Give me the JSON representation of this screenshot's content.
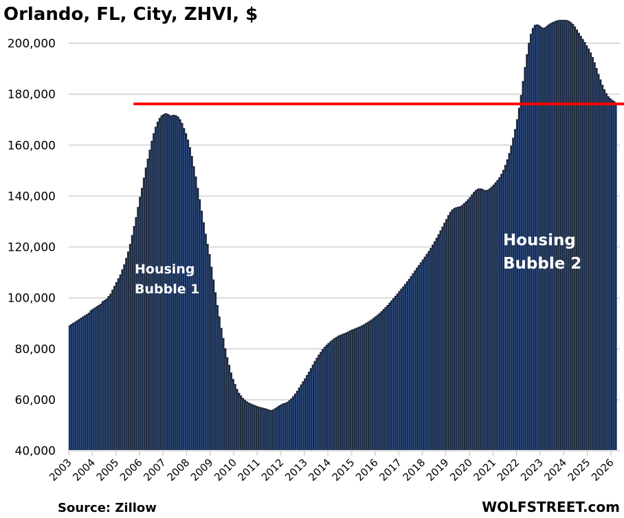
{
  "chart_data": {
    "type": "bar",
    "title": "Orlando, FL, City, ZHVI, $",
    "xlabel": "",
    "ylabel": "",
    "ylim": [
      40000,
      210000
    ],
    "y_ticks": [
      40000,
      60000,
      80000,
      100000,
      120000,
      140000,
      160000,
      180000,
      200000
    ],
    "y_tick_labels": [
      "40,000",
      "60,000",
      "80,000",
      "100,000",
      "120,000",
      "140,000",
      "160,000",
      "180,000",
      "200,000"
    ],
    "x_tick_labels": [
      "2003",
      "2004",
      "2005",
      "2006",
      "2007",
      "2008",
      "2009",
      "2010",
      "2011",
      "2012",
      "2013",
      "2014",
      "2015",
      "2016",
      "2017",
      "2018",
      "2019",
      "2020",
      "2021",
      "2022",
      "2023",
      "2024",
      "2025",
      "2026"
    ],
    "grid": "horizontal",
    "frequency": "monthly",
    "start": "2003-01",
    "bar_color": "#1f2a3c",
    "bar_edge_color": "#3b6bbf",
    "reference_line": {
      "value": 176200,
      "color": "#ff0000",
      "start": "2005-10"
    },
    "series": [
      {
        "name": "ZHVI",
        "values": [
          89000,
          89500,
          90000,
          90500,
          91000,
          91500,
          92000,
          92500,
          93000,
          93500,
          94000,
          95000,
          95500,
          96000,
          96500,
          97000,
          97500,
          98500,
          99000,
          99500,
          100500,
          101500,
          103000,
          104500,
          106000,
          107500,
          109000,
          111000,
          113000,
          115500,
          118000,
          121000,
          124500,
          128000,
          131500,
          135500,
          139500,
          143000,
          147000,
          151000,
          154500,
          158000,
          161500,
          164500,
          167000,
          169000,
          170500,
          171500,
          172000,
          172300,
          172000,
          171500,
          171500,
          171700,
          171500,
          171000,
          170000,
          168500,
          166500,
          164500,
          162000,
          159000,
          155500,
          151500,
          147500,
          143000,
          138500,
          134000,
          129500,
          125000,
          121000,
          117000,
          112000,
          107000,
          102000,
          97000,
          92500,
          88000,
          84000,
          80000,
          76500,
          73500,
          70500,
          68000,
          66000,
          64000,
          62500,
          61500,
          60500,
          59800,
          59200,
          58700,
          58300,
          58000,
          57700,
          57400,
          57100,
          56900,
          56700,
          56500,
          56300,
          56000,
          55800,
          55800,
          56100,
          56600,
          57100,
          57600,
          58000,
          58400,
          58600,
          59000,
          59600,
          60300,
          61200,
          62200,
          63300,
          64600,
          65800,
          67000,
          68200,
          69500,
          70800,
          72200,
          73600,
          75000,
          76300,
          77500,
          78600,
          79700,
          80600,
          81400,
          82100,
          82800,
          83400,
          84000,
          84500,
          85000,
          85300,
          85600,
          85900,
          86200,
          86600,
          87000,
          87400,
          87700,
          88000,
          88300,
          88600,
          89000,
          89400,
          89900,
          90400,
          90900,
          91400,
          92000,
          92600,
          93200,
          93900,
          94600,
          95400,
          96200,
          97000,
          97900,
          98800,
          99700,
          100600,
          101500,
          102500,
          103400,
          104300,
          105300,
          106300,
          107300,
          108400,
          109500,
          110600,
          111700,
          112700,
          113800,
          114900,
          116000,
          117100,
          118200,
          119400,
          120700,
          122000,
          123400,
          124800,
          126300,
          127800,
          129300,
          130800,
          132300,
          133600,
          134500,
          135100,
          135400,
          135600,
          135800,
          136300,
          137000,
          137700,
          138500,
          139400,
          140400,
          141400,
          142200,
          142700,
          142800,
          142600,
          142200,
          142100,
          142300,
          142800,
          143500,
          144300,
          145200,
          146100,
          147200,
          148500,
          150100,
          152000,
          154200,
          156700,
          159600,
          162700,
          166100,
          170000,
          174500,
          179500,
          185000,
          190500,
          195500,
          200000,
          203500,
          205800,
          207000,
          207200,
          206800,
          206200,
          205800,
          206000,
          206600,
          207200,
          207700,
          208100,
          208400,
          208700,
          208900,
          209000,
          209000,
          209000,
          208900,
          208600,
          208100,
          207400,
          206400,
          205200,
          203900,
          202700,
          201500,
          200300,
          199000,
          197700,
          196200,
          194400,
          192300,
          190100,
          187800,
          185600,
          183500,
          181700,
          180200,
          179000,
          178200,
          177600,
          177100,
          176600
        ]
      }
    ],
    "annotations": [
      {
        "text_lines": [
          "Housing",
          "Bubble 1"
        ]
      },
      {
        "text_lines": [
          "Housing",
          "Bubble 2"
        ]
      }
    ],
    "source": "Source: Zillow",
    "watermark": "WOLFSTREET.com"
  }
}
